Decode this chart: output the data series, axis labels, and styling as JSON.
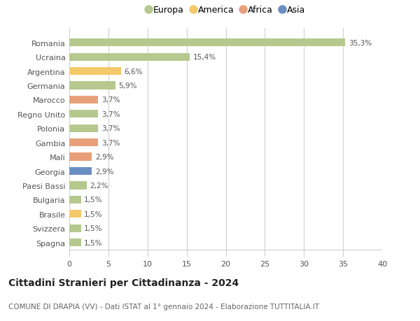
{
  "categories": [
    "Romania",
    "Ucraina",
    "Argentina",
    "Germania",
    "Marocco",
    "Regno Unito",
    "Polonia",
    "Gambia",
    "Mali",
    "Georgia",
    "Paesi Bassi",
    "Bulgaria",
    "Brasile",
    "Svizzera",
    "Spagna"
  ],
  "values": [
    35.3,
    15.4,
    6.6,
    5.9,
    3.7,
    3.7,
    3.7,
    3.7,
    2.9,
    2.9,
    2.2,
    1.5,
    1.5,
    1.5,
    1.5
  ],
  "labels": [
    "35,3%",
    "15,4%",
    "6,6%",
    "5,9%",
    "3,7%",
    "3,7%",
    "3,7%",
    "3,7%",
    "2,9%",
    "2,9%",
    "2,2%",
    "1,5%",
    "1,5%",
    "1,5%",
    "1,5%"
  ],
  "colors": [
    "#b5c98e",
    "#b5c98e",
    "#f5c96a",
    "#b5c98e",
    "#e8a07a",
    "#b5c98e",
    "#b5c98e",
    "#e8a07a",
    "#e8a07a",
    "#6b8ec2",
    "#b5c98e",
    "#b5c98e",
    "#f5c96a",
    "#b5c98e",
    "#b5c98e"
  ],
  "legend_labels": [
    "Europa",
    "America",
    "Africa",
    "Asia"
  ],
  "legend_colors": [
    "#b5c98e",
    "#f5c96a",
    "#e8a07a",
    "#6b8ec2"
  ],
  "title": "Cittadini Stranieri per Cittadinanza - 2024",
  "subtitle": "COMUNE DI DRAPIA (VV) - Dati ISTAT al 1° gennaio 2024 - Elaborazione TUTTITALIA.IT",
  "xlim": [
    0,
    40
  ],
  "xticks": [
    0,
    5,
    10,
    15,
    20,
    25,
    30,
    35,
    40
  ],
  "background_color": "#ffffff",
  "grid_color": "#d0d0d0",
  "bar_height": 0.55
}
